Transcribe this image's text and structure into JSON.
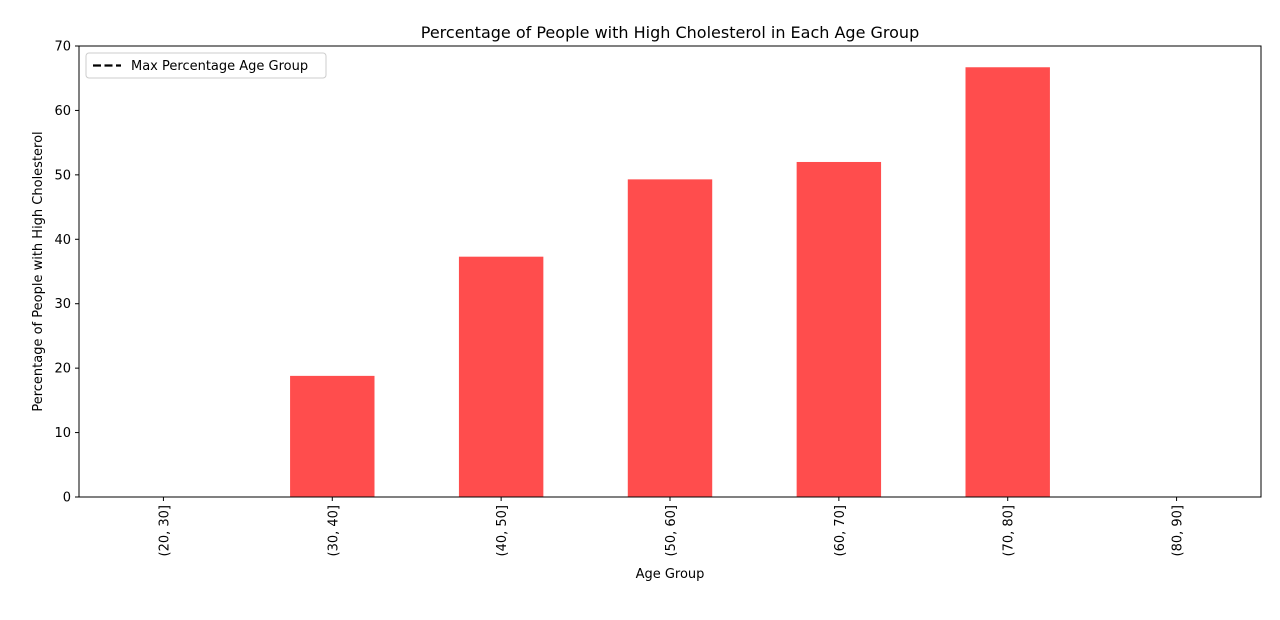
{
  "chart_data": {
    "type": "bar",
    "title": "Percentage of People with High Cholesterol in Each Age Group",
    "xlabel": "Age Group",
    "ylabel": "Percentage of People with High Cholesterol",
    "categories": [
      "(20, 30]",
      "(30, 40]",
      "(40, 50]",
      "(50, 60]",
      "(60, 70]",
      "(70, 80]",
      "(80, 90]"
    ],
    "values": [
      0,
      18.8,
      37.3,
      49.3,
      52.0,
      66.7,
      0
    ],
    "ylim": [
      0,
      70
    ],
    "yticks": [
      0,
      10,
      20,
      30,
      40,
      50,
      60,
      70
    ],
    "bar_color": "#ff4d4d",
    "grid": false,
    "legend": {
      "placement": "top-left",
      "entries": [
        {
          "label": "Max Percentage Age Group",
          "style": "dashed",
          "color": "#000000"
        }
      ]
    }
  }
}
